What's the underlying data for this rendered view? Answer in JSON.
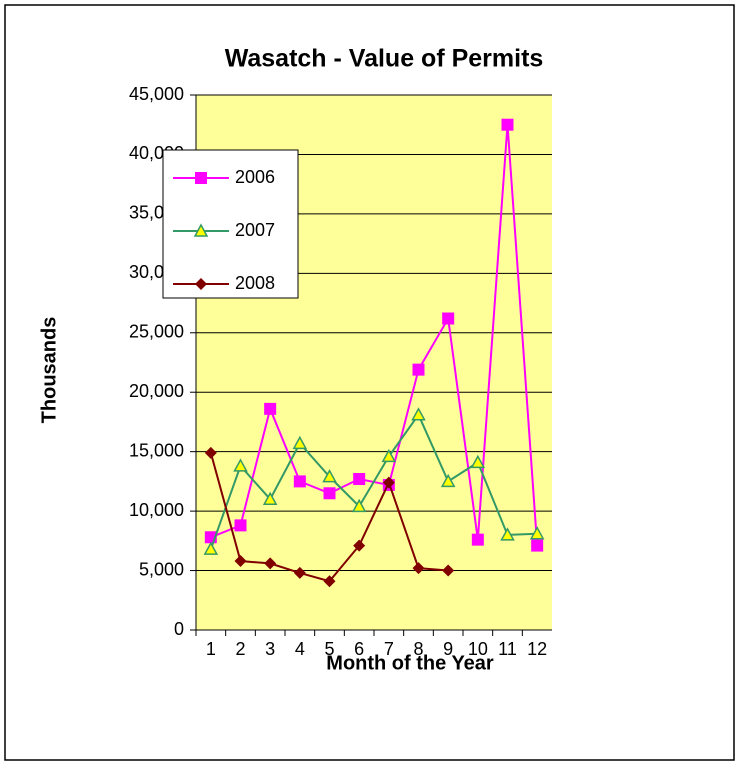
{
  "chart_data": {
    "type": "line",
    "title": "Wasatch - Value of Permits",
    "x_label": "Month of the Year",
    "y_label": "Thousands",
    "categories": [
      "1",
      "2",
      "3",
      "4",
      "5",
      "6",
      "7",
      "8",
      "9",
      "10",
      "11",
      "12"
    ],
    "series": [
      {
        "name": "2006",
        "color": "#ff00ff",
        "marker": "square",
        "values": [
          7800,
          8800,
          18600,
          12500,
          11500,
          12700,
          12200,
          21900,
          26200,
          7600,
          42500,
          7100
        ]
      },
      {
        "name": "2007",
        "color": "#339966",
        "marker": "triangle",
        "values": [
          6800,
          13800,
          11000,
          15700,
          12900,
          10400,
          14600,
          18100,
          12500,
          14100,
          8000,
          8100
        ]
      },
      {
        "name": "2008",
        "color": "#800000",
        "marker": "diamond",
        "values": [
          14900,
          5800,
          5600,
          4800,
          4100,
          7100,
          12400,
          5200,
          5000,
          null,
          null,
          null
        ]
      }
    ],
    "ylim": [
      0,
      45000
    ],
    "yticks": [
      0,
      {
        "value": 5000,
        "label": "5,000"
      },
      {
        "value": 10000,
        "label": "10,000"
      },
      {
        "value": 15000,
        "label": "15,000"
      },
      {
        "value": 20000,
        "label": "20,000"
      },
      {
        "value": 25000,
        "label": "25,000"
      },
      {
        "value": 30000,
        "label": "30,000"
      },
      {
        "value": 35000,
        "label": "35,000"
      },
      {
        "value": 40000,
        "label": "40,000"
      },
      {
        "value": 45000,
        "label": "45,000"
      }
    ],
    "grid": true,
    "legend": "left"
  }
}
